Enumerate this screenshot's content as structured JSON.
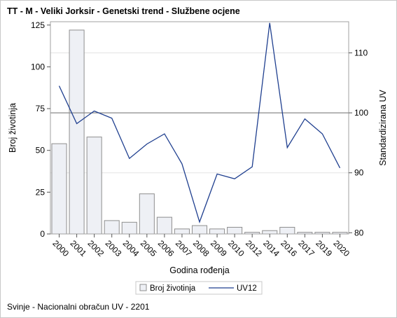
{
  "title": "TT - M - Veliki Jorksir - Genetski trend - Službene ocjene",
  "footnote": "Svinje - Nacionalni obračun UV - 2201",
  "colors": {
    "bar_fill": "#eef0f5",
    "bar_stroke": "#8e8e8e",
    "line": "#1f3f8f",
    "ref_line": "#8a8a8a",
    "grid": "#e4e4e4",
    "axis": "#a0a0a0"
  },
  "chart_data": {
    "type": "bar",
    "categories": [
      "2000",
      "2001",
      "2002",
      "2003",
      "2004",
      "2005",
      "2006",
      "2007",
      "2008",
      "2009",
      "2010",
      "2012",
      "2014",
      "2016",
      "2017",
      "2019",
      "2020"
    ],
    "xlabel": "Godina rođenja",
    "ylabel": "Broj životinja",
    "y2label": "Standardizirana UV",
    "ylim": [
      0,
      127
    ],
    "yticks": [
      0,
      25,
      50,
      75,
      100,
      125
    ],
    "y2lim": [
      79.8,
      115.2
    ],
    "y2ticks": [
      80,
      90,
      100,
      110
    ],
    "reference_line_y2": 100,
    "grid_y2": [
      90,
      110
    ],
    "legend_position": "bottom",
    "series": [
      {
        "name": "Broj životinja",
        "type": "bar",
        "axis": "left",
        "values": [
          54,
          122,
          58,
          8,
          7,
          24,
          10,
          3,
          5,
          3,
          4,
          1,
          2,
          4,
          1,
          1,
          1
        ]
      },
      {
        "name": "UV12",
        "type": "line",
        "axis": "right",
        "values": [
          104.5,
          98.2,
          100.3,
          99.1,
          92.4,
          94.8,
          96.5,
          91.5,
          81.8,
          89.8,
          89.0,
          91.0,
          115.0,
          94.2,
          99.0,
          96.5,
          90.8
        ]
      }
    ]
  }
}
